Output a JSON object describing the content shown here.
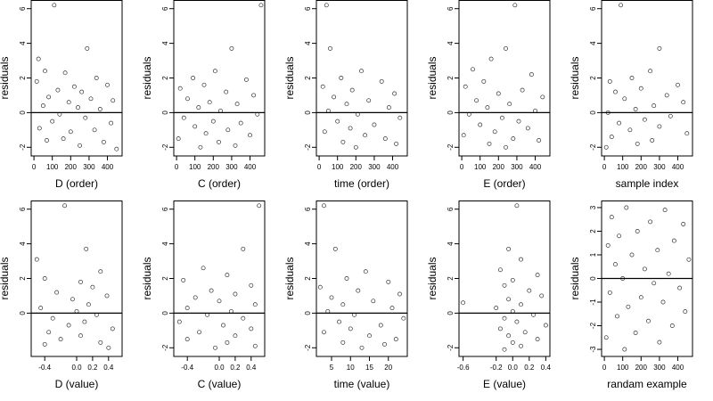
{
  "chart_data": [
    {
      "type": "scatter",
      "xlabel": "D (order)",
      "ylabel": "residuals",
      "xlim": [
        -15,
        480
      ],
      "ylim": [
        -2.5,
        6.5
      ],
      "xticks": [
        0,
        100,
        200,
        300,
        400
      ],
      "xtick_labels": [
        "0",
        "100",
        "200",
        "300",
        "400"
      ],
      "yticks": [
        -2,
        0,
        2,
        4,
        6
      ],
      "ytick_labels": [
        "-2",
        "0",
        "2",
        "4",
        "6"
      ],
      "hline": 0,
      "points": [
        [
          110,
          6.2
        ],
        [
          290,
          3.7
        ],
        [
          25,
          3.1
        ],
        [
          60,
          2.4
        ],
        [
          170,
          2.3
        ],
        [
          340,
          2.0
        ],
        [
          15,
          1.8
        ],
        [
          220,
          1.5
        ],
        [
          400,
          1.6
        ],
        [
          130,
          1.3
        ],
        [
          260,
          1.2
        ],
        [
          80,
          0.9
        ],
        [
          310,
          0.8
        ],
        [
          190,
          0.6
        ],
        [
          430,
          0.7
        ],
        [
          50,
          0.4
        ],
        [
          240,
          0.3
        ],
        [
          360,
          0.2
        ],
        [
          140,
          -0.1
        ],
        [
          280,
          -0.3
        ],
        [
          100,
          -0.5
        ],
        [
          420,
          -0.6
        ],
        [
          30,
          -0.9
        ],
        [
          200,
          -1.1
        ],
        [
          330,
          -1.0
        ],
        [
          160,
          -1.5
        ],
        [
          380,
          -1.7
        ],
        [
          70,
          -1.6
        ],
        [
          250,
          -1.9
        ],
        [
          450,
          -2.1
        ]
      ]
    },
    {
      "type": "scatter",
      "xlabel": "C (order)",
      "ylabel": "residuals",
      "xlim": [
        -15,
        480
      ],
      "ylim": [
        -2.5,
        6.5
      ],
      "xticks": [
        0,
        100,
        200,
        300,
        400
      ],
      "xtick_labels": [
        "0",
        "100",
        "200",
        "300",
        "400"
      ],
      "yticks": [
        -2,
        0,
        2,
        4,
        6
      ],
      "ytick_labels": [
        "-2",
        "0",
        "2",
        "4",
        "6"
      ],
      "hline": 0,
      "points": [
        [
          460,
          6.2
        ],
        [
          300,
          3.7
        ],
        [
          210,
          2.4
        ],
        [
          90,
          2.0
        ],
        [
          380,
          1.9
        ],
        [
          150,
          1.6
        ],
        [
          20,
          1.4
        ],
        [
          270,
          1.2
        ],
        [
          420,
          1.0
        ],
        [
          60,
          0.8
        ],
        [
          180,
          0.6
        ],
        [
          330,
          0.5
        ],
        [
          120,
          0.3
        ],
        [
          240,
          0.1
        ],
        [
          440,
          -0.1
        ],
        [
          40,
          -0.3
        ],
        [
          200,
          -0.5
        ],
        [
          350,
          -0.6
        ],
        [
          100,
          -0.8
        ],
        [
          280,
          -1.0
        ],
        [
          160,
          -1.2
        ],
        [
          400,
          -1.3
        ],
        [
          10,
          -1.5
        ],
        [
          230,
          -1.7
        ],
        [
          320,
          -1.9
        ],
        [
          130,
          -2.0
        ]
      ]
    },
    {
      "type": "scatter",
      "xlabel": "time (order)",
      "ylabel": "residuals",
      "xlim": [
        -15,
        480
      ],
      "ylim": [
        -2.5,
        6.5
      ],
      "xticks": [
        0,
        100,
        200,
        300,
        400
      ],
      "xtick_labels": [
        "0",
        "100",
        "200",
        "300",
        "400"
      ],
      "yticks": [
        -2,
        0,
        2,
        4,
        6
      ],
      "ytick_labels": [
        "-2",
        "0",
        "2",
        "4",
        "6"
      ],
      "hline": 0,
      "points": [
        [
          40,
          6.2
        ],
        [
          60,
          3.7
        ],
        [
          230,
          2.4
        ],
        [
          120,
          2.0
        ],
        [
          340,
          1.8
        ],
        [
          20,
          1.5
        ],
        [
          180,
          1.3
        ],
        [
          410,
          1.1
        ],
        [
          80,
          0.9
        ],
        [
          270,
          0.7
        ],
        [
          150,
          0.5
        ],
        [
          380,
          0.3
        ],
        [
          50,
          0.1
        ],
        [
          210,
          -0.1
        ],
        [
          440,
          -0.3
        ],
        [
          100,
          -0.5
        ],
        [
          300,
          -0.7
        ],
        [
          170,
          -0.9
        ],
        [
          30,
          -1.1
        ],
        [
          250,
          -1.3
        ],
        [
          360,
          -1.5
        ],
        [
          130,
          -1.7
        ],
        [
          420,
          -1.8
        ],
        [
          200,
          -2.0
        ]
      ]
    },
    {
      "type": "scatter",
      "xlabel": "E (order)",
      "ylabel": "residuals",
      "xlim": [
        -15,
        480
      ],
      "ylim": [
        -2.5,
        6.5
      ],
      "xticks": [
        0,
        100,
        200,
        300,
        400
      ],
      "xtick_labels": [
        "0",
        "100",
        "200",
        "300",
        "400"
      ],
      "yticks": [
        -2,
        0,
        2,
        4,
        6
      ],
      "ytick_labels": [
        "-2",
        "0",
        "2",
        "4",
        "6"
      ],
      "hline": 0,
      "points": [
        [
          290,
          6.2
        ],
        [
          240,
          3.7
        ],
        [
          160,
          3.1
        ],
        [
          60,
          2.5
        ],
        [
          380,
          2.2
        ],
        [
          120,
          1.8
        ],
        [
          20,
          1.5
        ],
        [
          330,
          1.3
        ],
        [
          200,
          1.1
        ],
        [
          440,
          0.9
        ],
        [
          80,
          0.7
        ],
        [
          260,
          0.5
        ],
        [
          140,
          0.3
        ],
        [
          400,
          0.1
        ],
        [
          40,
          -0.1
        ],
        [
          220,
          -0.3
        ],
        [
          310,
          -0.5
        ],
        [
          100,
          -0.7
        ],
        [
          360,
          -0.9
        ],
        [
          180,
          -1.1
        ],
        [
          10,
          -1.3
        ],
        [
          280,
          -1.5
        ],
        [
          420,
          -1.6
        ],
        [
          150,
          -1.8
        ],
        [
          240,
          -2.0
        ]
      ]
    },
    {
      "type": "scatter",
      "xlabel": "sample index",
      "ylabel": "residuals",
      "xlim": [
        -15,
        480
      ],
      "ylim": [
        -2.5,
        6.5
      ],
      "xticks": [
        0,
        100,
        200,
        300,
        400
      ],
      "xtick_labels": [
        "0",
        "100",
        "200",
        "300",
        "400"
      ],
      "yticks": [
        -2,
        0,
        2,
        4,
        6
      ],
      "ytick_labels": [
        "-2",
        "0",
        "2",
        "4",
        "6"
      ],
      "hline": 0,
      "points": [
        [
          90,
          6.2
        ],
        [
          300,
          3.7
        ],
        [
          250,
          2.4
        ],
        [
          150,
          2.0
        ],
        [
          30,
          1.8
        ],
        [
          400,
          1.6
        ],
        [
          200,
          1.4
        ],
        [
          60,
          1.2
        ],
        [
          340,
          1.0
        ],
        [
          110,
          0.8
        ],
        [
          430,
          0.6
        ],
        [
          270,
          0.4
        ],
        [
          170,
          0.2
        ],
        [
          20,
          0.0
        ],
        [
          360,
          -0.2
        ],
        [
          220,
          -0.4
        ],
        [
          80,
          -0.6
        ],
        [
          300,
          -0.8
        ],
        [
          140,
          -1.0
        ],
        [
          450,
          -1.2
        ],
        [
          40,
          -1.4
        ],
        [
          260,
          -1.6
        ],
        [
          180,
          -1.8
        ],
        [
          10,
          -2.0
        ]
      ]
    },
    {
      "type": "scatter",
      "xlabel": "D (value)",
      "ylabel": "residuals",
      "xlim": [
        -0.57,
        0.57
      ],
      "ylim": [
        -2.5,
        6.5
      ],
      "xticks": [
        -0.4,
        0.0,
        0.2,
        0.4
      ],
      "xtick_labels": [
        "-0.4",
        "0.0",
        "0.2",
        "0.4"
      ],
      "yticks": [
        0,
        2,
        4,
        6
      ],
      "ytick_labels": [
        "0",
        "2",
        "4",
        "6"
      ],
      "hline": 0,
      "points": [
        [
          -0.15,
          6.2
        ],
        [
          0.12,
          3.7
        ],
        [
          -0.5,
          3.1
        ],
        [
          0.3,
          2.4
        ],
        [
          -0.4,
          2.0
        ],
        [
          0.05,
          1.8
        ],
        [
          0.2,
          1.5
        ],
        [
          -0.25,
          1.2
        ],
        [
          0.38,
          1.0
        ],
        [
          -0.05,
          0.8
        ],
        [
          0.15,
          0.5
        ],
        [
          -0.45,
          0.3
        ],
        [
          0.0,
          0.1
        ],
        [
          0.25,
          -0.1
        ],
        [
          -0.3,
          -0.3
        ],
        [
          0.1,
          -0.5
        ],
        [
          -0.1,
          -0.7
        ],
        [
          0.45,
          -0.9
        ],
        [
          -0.35,
          -1.1
        ],
        [
          0.05,
          -1.3
        ],
        [
          -0.2,
          -1.5
        ],
        [
          0.3,
          -1.7
        ],
        [
          0.4,
          -2.0
        ],
        [
          -0.4,
          -1.8
        ]
      ]
    },
    {
      "type": "scatter",
      "xlabel": "C (value)",
      "ylabel": "residuals",
      "xlim": [
        -0.57,
        0.57
      ],
      "ylim": [
        -2.5,
        6.5
      ],
      "xticks": [
        -0.4,
        0.0,
        0.2,
        0.4
      ],
      "xtick_labels": [
        "-0.4",
        "0.0",
        "0.2",
        "0.4"
      ],
      "yticks": [
        -2,
        0,
        2,
        4,
        6
      ],
      "ytick_labels": [
        "-2",
        "0",
        "2",
        "4",
        "6"
      ],
      "hline": 0,
      "points": [
        [
          0.5,
          6.2
        ],
        [
          0.3,
          3.7
        ],
        [
          -0.2,
          2.6
        ],
        [
          0.1,
          2.2
        ],
        [
          -0.45,
          1.9
        ],
        [
          0.4,
          1.6
        ],
        [
          -0.1,
          1.3
        ],
        [
          0.2,
          1.1
        ],
        [
          -0.3,
          0.9
        ],
        [
          0.0,
          0.7
        ],
        [
          0.45,
          0.5
        ],
        [
          -0.4,
          0.3
        ],
        [
          0.15,
          0.1
        ],
        [
          -0.15,
          -0.1
        ],
        [
          0.3,
          -0.3
        ],
        [
          -0.5,
          -0.5
        ],
        [
          0.05,
          -0.7
        ],
        [
          0.4,
          -0.9
        ],
        [
          -0.25,
          -1.1
        ],
        [
          0.2,
          -1.3
        ],
        [
          -0.4,
          -1.5
        ],
        [
          0.1,
          -1.7
        ],
        [
          0.45,
          -1.9
        ],
        [
          -0.05,
          -2.0
        ]
      ]
    },
    {
      "type": "scatter",
      "xlabel": "time (value)",
      "ylabel": "residuals",
      "xlim": [
        1,
        25
      ],
      "ylim": [
        -2.5,
        6.5
      ],
      "xticks": [
        5,
        10,
        15,
        20
      ],
      "xtick_labels": [
        "5",
        "10",
        "15",
        "20"
      ],
      "yticks": [
        -2,
        0,
        2,
        4,
        6
      ],
      "ytick_labels": [
        "-2",
        "0",
        "2",
        "4",
        "6"
      ],
      "hline": 0,
      "points": [
        [
          3,
          6.2
        ],
        [
          6,
          3.7
        ],
        [
          14,
          2.4
        ],
        [
          9,
          2.0
        ],
        [
          20,
          1.8
        ],
        [
          2,
          1.5
        ],
        [
          12,
          1.3
        ],
        [
          23,
          1.1
        ],
        [
          5,
          0.9
        ],
        [
          16,
          0.7
        ],
        [
          8,
          0.5
        ],
        [
          21,
          0.3
        ],
        [
          4,
          0.1
        ],
        [
          11,
          -0.1
        ],
        [
          24,
          -0.3
        ],
        [
          7,
          -0.5
        ],
        [
          18,
          -0.7
        ],
        [
          10,
          -0.9
        ],
        [
          3,
          -1.1
        ],
        [
          15,
          -1.3
        ],
        [
          22,
          -1.5
        ],
        [
          8,
          -1.7
        ],
        [
          19,
          -1.8
        ],
        [
          13,
          -2.0
        ]
      ]
    },
    {
      "type": "scatter",
      "xlabel": "E (value)",
      "ylabel": "residuals",
      "xlim": [
        -0.65,
        0.45
      ],
      "ylim": [
        -2.5,
        6.5
      ],
      "xticks": [
        -0.6,
        -0.2,
        0.0,
        0.2,
        0.4
      ],
      "xtick_labels": [
        "-0.6",
        "-0.2",
        "0.0",
        "0.2",
        "0.4"
      ],
      "yticks": [
        -2,
        0,
        2,
        4,
        6
      ],
      "ytick_labels": [
        "-2",
        "0",
        "2",
        "4",
        "6"
      ],
      "hline": 0,
      "points": [
        [
          0.05,
          6.2
        ],
        [
          -0.05,
          3.7
        ],
        [
          0.1,
          3.1
        ],
        [
          -0.15,
          2.5
        ],
        [
          0.3,
          2.2
        ],
        [
          0.0,
          1.9
        ],
        [
          -0.1,
          1.6
        ],
        [
          0.2,
          1.3
        ],
        [
          -0.6,
          0.6
        ],
        [
          0.35,
          1.0
        ],
        [
          -0.05,
          0.8
        ],
        [
          0.1,
          0.5
        ],
        [
          -0.2,
          0.3
        ],
        [
          0.0,
          0.1
        ],
        [
          0.25,
          -0.1
        ],
        [
          -0.1,
          -0.3
        ],
        [
          0.05,
          -0.5
        ],
        [
          0.4,
          -0.7
        ],
        [
          -0.15,
          -0.9
        ],
        [
          0.15,
          -1.1
        ],
        [
          -0.05,
          -1.3
        ],
        [
          0.3,
          -1.5
        ],
        [
          0.0,
          -1.7
        ],
        [
          0.1,
          -1.9
        ],
        [
          -0.1,
          -2.1
        ]
      ]
    },
    {
      "type": "scatter",
      "xlabel": "randam example",
      "ylabel": "residuals",
      "xlim": [
        -15,
        480
      ],
      "ylim": [
        -3.3,
        3.3
      ],
      "xticks": [
        0,
        100,
        200,
        300,
        400
      ],
      "xtick_labels": [
        "0",
        "100",
        "200",
        "300",
        "400"
      ],
      "yticks": [
        -3,
        -2,
        -1,
        0,
        1,
        2,
        3
      ],
      "ytick_labels": [
        "-3",
        "-2",
        "-1",
        "0",
        "1",
        "2",
        "3"
      ],
      "hline": 0,
      "points": [
        [
          120,
          3.0
        ],
        [
          330,
          2.9
        ],
        [
          40,
          2.6
        ],
        [
          250,
          2.4
        ],
        [
          430,
          2.3
        ],
        [
          180,
          2.0
        ],
        [
          80,
          1.8
        ],
        [
          380,
          1.6
        ],
        [
          20,
          1.4
        ],
        [
          290,
          1.2
        ],
        [
          150,
          1.0
        ],
        [
          460,
          0.8
        ],
        [
          60,
          0.6
        ],
        [
          220,
          0.4
        ],
        [
          350,
          0.2
        ],
        [
          100,
          0.0
        ],
        [
          270,
          -0.2
        ],
        [
          410,
          -0.4
        ],
        [
          30,
          -0.6
        ],
        [
          200,
          -0.8
        ],
        [
          320,
          -1.0
        ],
        [
          130,
          -1.2
        ],
        [
          440,
          -1.4
        ],
        [
          70,
          -1.6
        ],
        [
          240,
          -1.8
        ],
        [
          370,
          -2.0
        ],
        [
          170,
          -2.3
        ],
        [
          10,
          -2.5
        ],
        [
          300,
          -2.7
        ],
        [
          110,
          -3.0
        ]
      ]
    }
  ]
}
